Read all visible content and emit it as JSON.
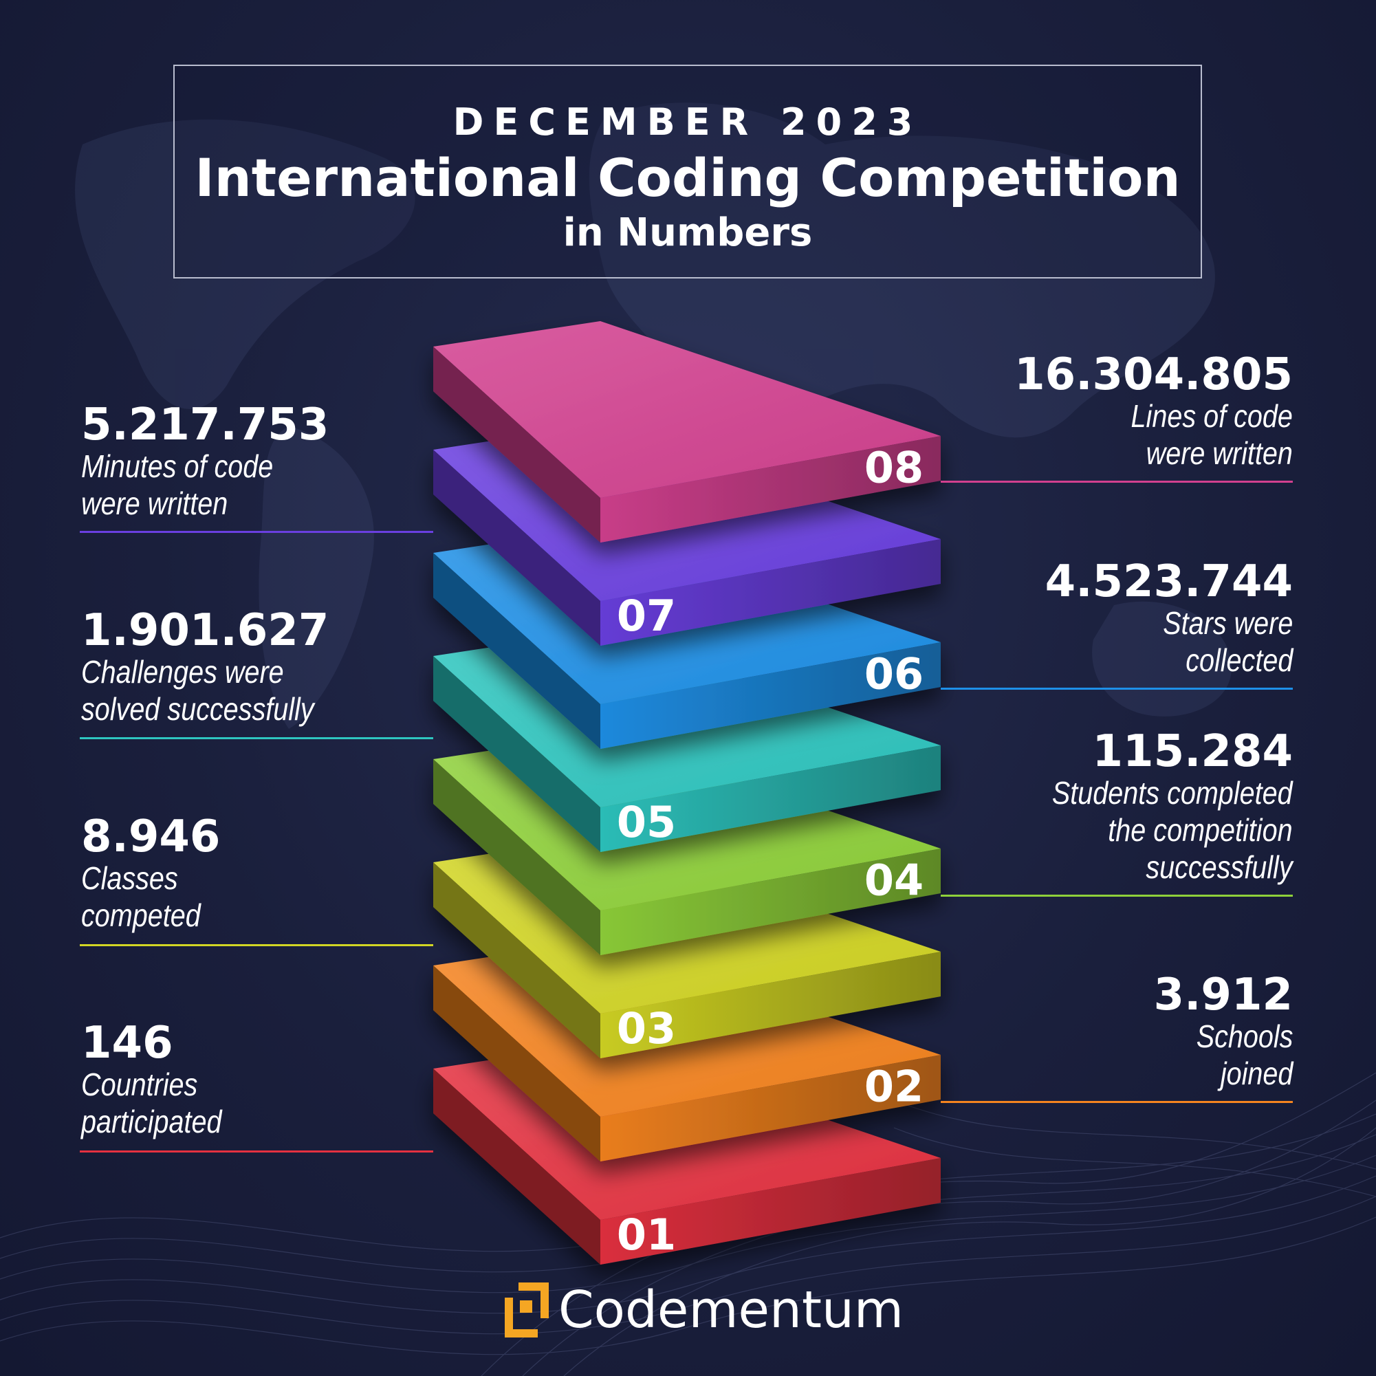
{
  "title": {
    "month": "DECEMBER 2023",
    "main": "International Coding Competition",
    "sub": "in Numbers"
  },
  "layers": [
    {
      "id": "01",
      "color": "#e53140"
    },
    {
      "id": "02",
      "color": "#f5841f"
    },
    {
      "id": "03",
      "color": "#d2d624"
    },
    {
      "id": "04",
      "color": "#8fd13a"
    },
    {
      "id": "05",
      "color": "#2ec6c0"
    },
    {
      "id": "06",
      "color": "#1e90e8"
    },
    {
      "id": "07",
      "color": "#6a3fe0"
    },
    {
      "id": "08",
      "color": "#d2408f"
    }
  ],
  "stats": {
    "s01": {
      "value": "146",
      "line1": "Countries",
      "line2": "participated"
    },
    "s02": {
      "value": "3.912",
      "line1": "Schools",
      "line2": "joined"
    },
    "s03": {
      "value": "8.946",
      "line1": "Classes",
      "line2": "competed"
    },
    "s04": {
      "value": "115.284",
      "line1": "Students completed",
      "line2": "the competition",
      "line3": "successfully"
    },
    "s05": {
      "value": "1.901.627",
      "line1": "Challenges were",
      "line2": "solved successfully"
    },
    "s06": {
      "value": "4.523.744",
      "line1": "Stars were",
      "line2": "collected"
    },
    "s07": {
      "value": "5.217.753",
      "line1": "Minutes of code",
      "line2": "were written"
    },
    "s08": {
      "value": "16.304.805",
      "line1": "Lines of code",
      "line2": "were written"
    }
  },
  "brand": {
    "name": "Codementum",
    "accent": "#f5a623"
  }
}
